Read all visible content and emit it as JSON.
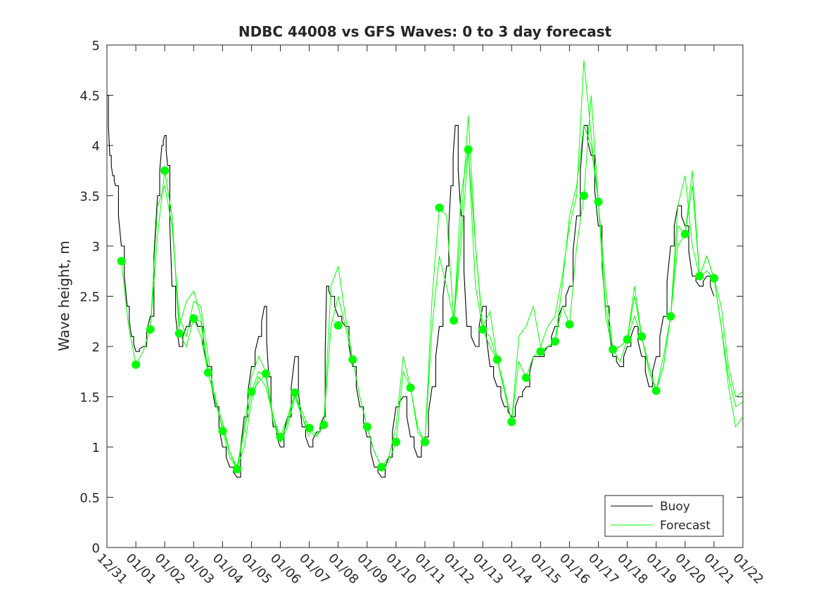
{
  "chart_data": {
    "type": "line",
    "title": "NDBC 44008 vs GFS Waves: 0 to 3 day forecast",
    "xlabel": "",
    "ylabel": "Wave height, m",
    "xlim": [
      0,
      22
    ],
    "ylim": [
      0,
      5
    ],
    "yticks": [
      "0",
      "0.5",
      "1",
      "1.5",
      "2",
      "2.5",
      "3",
      "3.5",
      "4",
      "4.5",
      "5"
    ],
    "xtick_labels": [
      "12/31",
      "01/01",
      "01/02",
      "01/03",
      "01/04",
      "01/05",
      "01/06",
      "01/07",
      "01/08",
      "01/09",
      "01/10",
      "01/11",
      "01/12",
      "01/13",
      "01/14",
      "01/15",
      "01/16",
      "01/17",
      "01/18",
      "01/19",
      "01/20",
      "01/21",
      "01/22"
    ],
    "legend": {
      "position": "bottom-right",
      "entries": [
        "Buoy",
        "Forecast"
      ]
    },
    "colors": {
      "buoy": "#000000",
      "forecast": "#00ff00",
      "axis": "#262626"
    },
    "buoy": {
      "name": "Buoy",
      "x": [
        0,
        0.1,
        0.2,
        0.3,
        0.5,
        0.7,
        0.85,
        1.0,
        1.25,
        1.5,
        1.75,
        1.9,
        2.0,
        2.1,
        2.25,
        2.5,
        2.75,
        3.0,
        3.15,
        3.5,
        3.75,
        4.0,
        4.25,
        4.5,
        4.75,
        5.0,
        5.25,
        5.45,
        5.6,
        5.75,
        6.0,
        6.25,
        6.5,
        6.75,
        7.0,
        7.25,
        7.5,
        7.6,
        7.75,
        8.0,
        8.25,
        8.5,
        8.75,
        9.0,
        9.25,
        9.5,
        9.75,
        10.0,
        10.25,
        10.5,
        10.75,
        11.0,
        11.25,
        11.5,
        11.75,
        11.9,
        12.05,
        12.25,
        12.45,
        12.75,
        13.0,
        13.25,
        13.5,
        13.75,
        14.0,
        14.25,
        14.5,
        14.75,
        15.0,
        15.25,
        15.5,
        15.75,
        16.0,
        16.25,
        16.5,
        16.75,
        17.0,
        17.25,
        17.5,
        17.75,
        18.0,
        18.25,
        18.5,
        18.75,
        19.0,
        19.25,
        19.5,
        19.75,
        20.0,
        20.25,
        20.5,
        20.75,
        21.0
      ],
      "values": [
        4.5,
        3.9,
        3.7,
        3.6,
        3.0,
        2.4,
        2.1,
        1.95,
        2.0,
        2.3,
        3.5,
        4.0,
        4.1,
        3.8,
        2.6,
        2.0,
        2.2,
        2.3,
        2.2,
        1.8,
        1.4,
        1.0,
        0.8,
        0.7,
        1.3,
        1.8,
        2.1,
        2.4,
        1.7,
        1.2,
        1.0,
        1.3,
        1.9,
        1.2,
        1.0,
        1.15,
        1.3,
        2.6,
        2.5,
        2.3,
        2.2,
        1.8,
        1.4,
        1.1,
        0.8,
        0.7,
        0.9,
        1.4,
        1.5,
        1.1,
        0.9,
        1.1,
        1.6,
        2.2,
        2.8,
        3.6,
        4.2,
        3.3,
        2.2,
        2.0,
        2.4,
        1.8,
        1.6,
        1.4,
        1.3,
        1.5,
        1.6,
        1.9,
        1.9,
        2.0,
        2.2,
        2.4,
        2.6,
        3.3,
        4.2,
        3.9,
        3.2,
        2.4,
        1.9,
        1.8,
        2.0,
        2.2,
        1.9,
        1.6,
        1.9,
        2.3,
        3.0,
        3.4,
        3.2,
        2.7,
        2.6,
        2.7,
        2.5
      ]
    },
    "forecast_dots": {
      "name": "Forecast",
      "x": [
        0.5,
        1.0,
        1.5,
        2.0,
        2.5,
        3.0,
        3.5,
        4.0,
        4.5,
        5.0,
        5.5,
        6.0,
        6.5,
        7.0,
        7.5,
        8.0,
        8.5,
        9.0,
        9.5,
        10.0,
        10.5,
        11.0,
        11.5,
        12.0,
        12.5,
        13.0,
        13.5,
        14.0,
        14.5,
        15.0,
        15.5,
        16.0,
        16.5,
        17.0,
        17.5,
        18.0,
        18.5,
        19.0,
        19.5,
        20.0,
        20.5,
        21.0
      ],
      "values": [
        2.85,
        1.82,
        2.17,
        3.75,
        2.13,
        2.28,
        1.74,
        1.16,
        0.78,
        1.55,
        1.73,
        1.1,
        1.54,
        1.19,
        1.22,
        2.21,
        1.87,
        1.2,
        0.8,
        1.05,
        1.59,
        1.05,
        3.38,
        2.26,
        3.96,
        2.17,
        1.87,
        1.25,
        1.69,
        1.95,
        2.05,
        2.22,
        3.5,
        3.44,
        1.97,
        2.07,
        2.1,
        1.56,
        2.3,
        3.12,
        2.7,
        2.68
      ]
    },
    "forecast_runs": [
      {
        "name": "Forecast run 1",
        "x": [
          0.5,
          0.75,
          1.0,
          1.25,
          1.5,
          1.75,
          2.0,
          2.25,
          2.5,
          2.75,
          3.0,
          3.25,
          3.5
        ],
        "values": [
          2.85,
          2.2,
          1.82,
          1.95,
          2.17,
          3.1,
          3.75,
          3.3,
          2.13,
          2.0,
          2.28,
          2.25,
          1.74
        ]
      },
      {
        "name": "Forecast run 2",
        "x": [
          1.5,
          1.75,
          2.0,
          2.25,
          2.5,
          2.75,
          3.0,
          3.25,
          3.5,
          3.75,
          4.0,
          4.25,
          4.5,
          4.75,
          5.0,
          5.25,
          5.5
        ],
        "values": [
          2.17,
          3.4,
          3.6,
          3.2,
          2.3,
          2.1,
          2.45,
          2.4,
          1.9,
          1.45,
          1.2,
          0.95,
          0.8,
          1.2,
          1.7,
          1.9,
          1.75
        ]
      },
      {
        "name": "Forecast run 3",
        "x": [
          2.0,
          2.25,
          2.5,
          2.75,
          3.0,
          3.25,
          3.5,
          3.75,
          4.0,
          4.25,
          4.5,
          4.75,
          5.0,
          5.25,
          5.5,
          5.75,
          6.0,
          6.25,
          6.5,
          6.75,
          7.0
        ],
        "values": [
          3.75,
          3.3,
          2.2,
          2.45,
          2.55,
          2.3,
          1.75,
          1.45,
          1.25,
          0.95,
          0.78,
          1.0,
          1.45,
          1.7,
          1.6,
          1.3,
          1.05,
          1.2,
          1.5,
          1.3,
          1.1
        ]
      },
      {
        "name": "Forecast run 4",
        "x": [
          3.0,
          3.25,
          3.5,
          3.75,
          4.0,
          4.25,
          4.5,
          4.75,
          5.0,
          5.25,
          5.5,
          5.75,
          6.0,
          6.25,
          6.5,
          6.75,
          7.0,
          7.25,
          7.5,
          7.75,
          8.0,
          8.25,
          8.5
        ],
        "values": [
          2.28,
          2.1,
          1.74,
          1.5,
          1.16,
          0.9,
          0.78,
          1.15,
          1.55,
          1.75,
          1.7,
          1.25,
          1.05,
          1.25,
          1.54,
          1.3,
          1.15,
          1.1,
          1.22,
          2.2,
          2.5,
          2.2,
          1.87
        ]
      },
      {
        "name": "Forecast run 5",
        "x": [
          5.0,
          5.25,
          5.5,
          5.75,
          6.0,
          6.25,
          6.5,
          6.75,
          7.0,
          7.25,
          7.5,
          7.75,
          8.0,
          8.25,
          8.5,
          8.75,
          9.0,
          9.25,
          9.5,
          9.75,
          10.0,
          10.25,
          10.5,
          10.75,
          11.0,
          11.25,
          11.5,
          11.75,
          12.0,
          12.25,
          12.5,
          12.75,
          13.0,
          13.25,
          13.5,
          13.75,
          14.0
        ],
        "values": [
          1.55,
          1.65,
          1.73,
          1.3,
          1.1,
          1.3,
          1.54,
          1.35,
          1.19,
          1.12,
          1.22,
          2.6,
          2.8,
          2.3,
          1.87,
          1.5,
          1.2,
          0.95,
          0.8,
          0.85,
          1.05,
          1.75,
          1.59,
          1.2,
          1.05,
          2.5,
          3.38,
          3.3,
          2.26,
          3.0,
          3.96,
          3.0,
          2.17,
          2.1,
          1.87,
          1.55,
          1.25
        ]
      },
      {
        "name": "Forecast run 6",
        "x": [
          9.0,
          9.25,
          9.5,
          9.75,
          10.0,
          10.25,
          10.5,
          10.75,
          11.0,
          11.25,
          11.5,
          11.75,
          12.0,
          12.25,
          12.5,
          12.75,
          13.0,
          13.25,
          13.5,
          13.75,
          14.0,
          14.25,
          14.5,
          14.75,
          15.0,
          15.25,
          15.5,
          15.75,
          16.0,
          16.25,
          16.5,
          16.75,
          17.0,
          17.25,
          17.5,
          17.75,
          18.0
        ],
        "values": [
          1.2,
          0.95,
          0.8,
          0.9,
          1.2,
          1.9,
          1.6,
          1.15,
          1.05,
          2.2,
          2.9,
          2.6,
          2.26,
          3.2,
          4.3,
          3.0,
          2.2,
          2.35,
          1.87,
          1.6,
          1.25,
          2.1,
          2.2,
          2.4,
          2.0,
          2.2,
          2.3,
          2.7,
          3.2,
          3.5,
          4.85,
          4.1,
          3.44,
          2.3,
          1.97,
          2.0,
          2.07
        ]
      },
      {
        "name": "Forecast run 7",
        "x": [
          12.0,
          12.25,
          12.5,
          12.75,
          13.0,
          13.25,
          13.5,
          13.75,
          14.0,
          14.25,
          14.5,
          14.75,
          15.0,
          15.25,
          15.5,
          15.75,
          16.0,
          16.25,
          16.5,
          16.75,
          17.0,
          17.25,
          17.5,
          17.75,
          18.0,
          18.25,
          18.5,
          18.75,
          19.0,
          19.25,
          19.5,
          19.75,
          20.0,
          20.25,
          20.5,
          20.75,
          21.0,
          21.25,
          21.5,
          21.75,
          22.0
        ],
        "values": [
          2.26,
          3.5,
          3.96,
          2.6,
          2.17,
          2.0,
          1.87,
          1.55,
          1.25,
          1.85,
          1.69,
          1.9,
          1.95,
          2.0,
          2.05,
          2.6,
          3.3,
          3.6,
          4.2,
          4.0,
          3.44,
          2.4,
          1.97,
          1.85,
          2.07,
          2.6,
          2.1,
          1.75,
          1.56,
          1.8,
          2.3,
          3.4,
          3.7,
          3.0,
          2.7,
          2.9,
          2.68,
          2.2,
          1.6,
          1.2,
          1.3
        ]
      },
      {
        "name": "Forecast run 8",
        "x": [
          15.0,
          15.25,
          15.5,
          15.75,
          16.0,
          16.25,
          16.5,
          16.75,
          17.0,
          17.25,
          17.5,
          17.75,
          18.0,
          18.25,
          18.5,
          18.75,
          19.0,
          19.25,
          19.5,
          19.75,
          20.0,
          20.25,
          20.5,
          20.75,
          21.0,
          21.25,
          21.5,
          21.75,
          22.0
        ],
        "values": [
          1.95,
          2.0,
          2.05,
          2.4,
          2.22,
          3.0,
          3.5,
          4.5,
          3.44,
          2.6,
          1.97,
          2.0,
          2.07,
          2.5,
          2.1,
          1.8,
          1.56,
          1.8,
          2.3,
          3.0,
          3.12,
          3.75,
          2.7,
          2.75,
          2.68,
          2.4,
          1.8,
          1.5,
          1.55
        ]
      },
      {
        "name": "Forecast run 9",
        "x": [
          18.0,
          18.25,
          18.5,
          18.75,
          19.0,
          19.25,
          19.5,
          19.75,
          20.0,
          20.25,
          20.5,
          20.75,
          21.0,
          21.25,
          21.5,
          21.75,
          22.0
        ],
        "values": [
          2.07,
          2.3,
          2.1,
          1.8,
          1.56,
          1.9,
          2.3,
          3.2,
          3.12,
          3.6,
          2.7,
          2.9,
          2.68,
          2.2,
          1.7,
          1.4,
          1.45
        ]
      }
    ]
  }
}
